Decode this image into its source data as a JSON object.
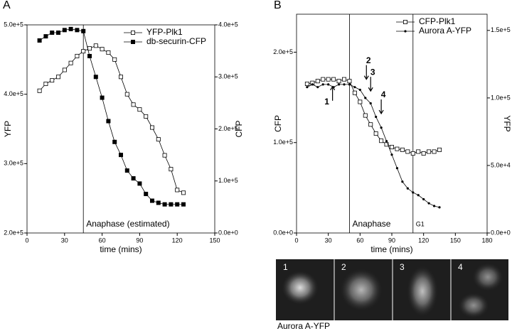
{
  "chart_data": [
    {
      "type": "line",
      "panel_label": "A",
      "xlabel": "time (mins)",
      "ylabel": "YFP",
      "y2label": "CFP",
      "x": [
        10,
        15,
        20,
        25,
        30,
        35,
        40,
        45,
        50,
        55,
        60,
        65,
        70,
        75,
        80,
        85,
        90,
        95,
        100,
        105,
        110,
        115,
        120,
        125
      ],
      "series": [
        {
          "name": "YFP-Plk1",
          "color": "#000000",
          "marker": "open-square",
          "axis": "y",
          "values": [
            405000,
            415000,
            420000,
            425000,
            435000,
            445000,
            455000,
            462000,
            466000,
            470000,
            465000,
            460000,
            450000,
            425000,
            400000,
            385000,
            378000,
            368000,
            352000,
            335000,
            312000,
            292000,
            262000,
            258000
          ]
        },
        {
          "name": "db-securin-CFP",
          "color": "#000000",
          "marker": "filled-square",
          "axis": "y2",
          "values": [
            370000,
            378000,
            385000,
            385000,
            390000,
            392000,
            390000,
            388000,
            340000,
            300000,
            260000,
            215000,
            175000,
            150000,
            120000,
            105000,
            95000,
            75000,
            62000,
            58000,
            55000,
            55000,
            55000,
            55000
          ]
        }
      ],
      "xlim": [
        0,
        150
      ],
      "xticks": [
        0,
        30,
        60,
        90,
        120,
        150
      ],
      "ylim": [
        200000,
        500000
      ],
      "yticks": [
        {
          "value": 200000,
          "label": "2.0e+5"
        },
        {
          "value": 300000,
          "label": "3.0e+5"
        },
        {
          "value": 400000,
          "label": "4.0e+5"
        },
        {
          "value": 500000,
          "label": "5.0e+5"
        }
      ],
      "y2lim": [
        0,
        400000
      ],
      "y2ticks": [
        {
          "value": 0,
          "label": "0.0e+0"
        },
        {
          "value": 100000,
          "label": "1.0e+5"
        },
        {
          "value": 200000,
          "label": "2.0e+5"
        },
        {
          "value": 300000,
          "label": "3.0e+5"
        },
        {
          "value": 400000,
          "label": "4.0e+5"
        }
      ],
      "vlines": [
        {
          "text": "Anaphase (estimated)",
          "x": 45
        }
      ],
      "arrows": [],
      "legend": "upper right"
    },
    {
      "type": "line",
      "panel_label": "B",
      "xlabel": "time (mins)",
      "ylabel": "CFP",
      "y2label": "YFP",
      "x": [
        10,
        15,
        20,
        25,
        30,
        35,
        40,
        45,
        50,
        55,
        60,
        65,
        70,
        75,
        80,
        85,
        90,
        95,
        100,
        105,
        110,
        115,
        120,
        125,
        130,
        135
      ],
      "series": [
        {
          "name": "CFP-Plk1",
          "color": "#000000",
          "marker": "open-square",
          "axis": "y",
          "values": [
            165000,
            166000,
            168000,
            170000,
            170000,
            170000,
            168000,
            170000,
            168000,
            155000,
            145000,
            130000,
            120000,
            110000,
            102000,
            98000,
            95000,
            93000,
            92000,
            90000,
            88000,
            90000,
            88000,
            90000,
            90000,
            92000
          ]
        },
        {
          "name": "Aurora A-YFP",
          "color": "#000000",
          "marker": "dot",
          "axis": "y2",
          "values": [
            108000,
            110000,
            108000,
            110000,
            110000,
            108000,
            110000,
            110000,
            110000,
            108000,
            106000,
            100000,
            96000,
            86000,
            78000,
            68000,
            58000,
            48000,
            38000,
            33000,
            30000,
            28000,
            25000,
            22000,
            20000,
            19000
          ]
        }
      ],
      "xlim": [
        0,
        180
      ],
      "xticks": [
        0,
        30,
        60,
        90,
        120,
        150,
        180
      ],
      "ylim": [
        0,
        242000
      ],
      "yticks": [
        {
          "value": 0,
          "label": "0.0e+0"
        },
        {
          "value": 100000,
          "label": "1.0e+5"
        },
        {
          "value": 200000,
          "label": "2.0e+5"
        }
      ],
      "y2lim": [
        0,
        162000
      ],
      "y2ticks": [
        {
          "value": 0,
          "label": "0.0e+0"
        },
        {
          "value": 50000,
          "label": "5.0e+4"
        },
        {
          "value": 100000,
          "label": "1.0e+5"
        },
        {
          "value": 150000,
          "label": "1.5e+5"
        }
      ],
      "vlines": [
        {
          "text": "Anaphase",
          "x": 50
        },
        {
          "text": "G1",
          "x": 110
        }
      ],
      "arrows": [
        {
          "text": "1",
          "x": 34,
          "y": 162000,
          "direction": "up"
        },
        {
          "text": "2",
          "x": 66,
          "y": 170000,
          "direction": "down"
        },
        {
          "text": "3",
          "x": 70,
          "y": 157000,
          "direction": "down"
        },
        {
          "text": "4",
          "x": 80,
          "y": 132000,
          "direction": "down"
        }
      ],
      "legend": "upper right"
    }
  ],
  "image_panels": {
    "labels": [
      "1",
      "2",
      "3",
      "4"
    ],
    "caption": "Aurora A-YFP"
  }
}
